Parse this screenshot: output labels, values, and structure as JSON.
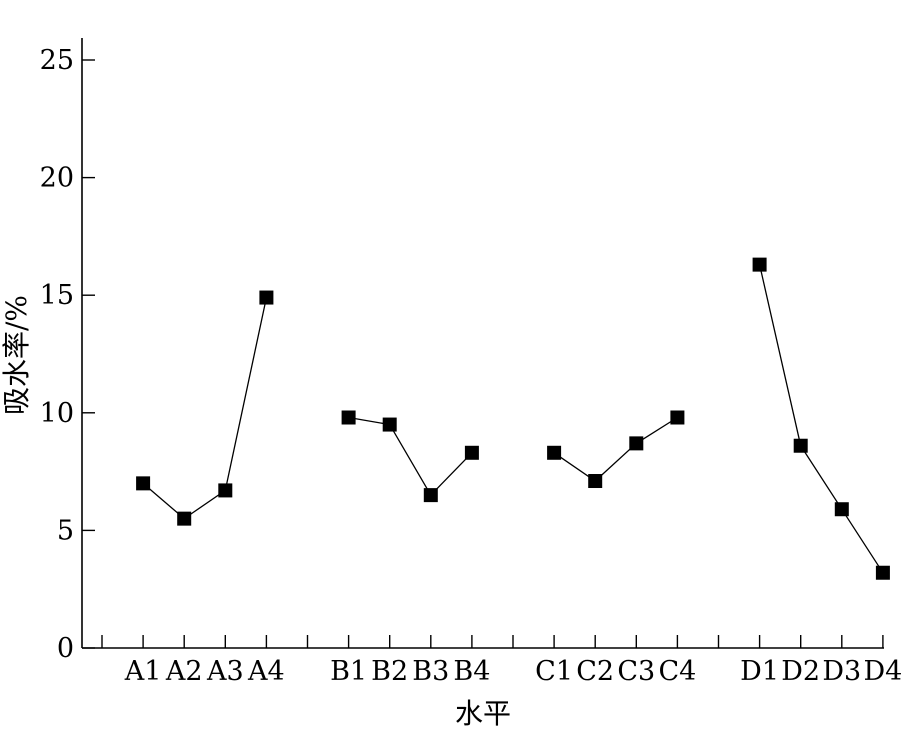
{
  "chart_data": {
    "type": "line",
    "xlabel": "水平",
    "ylabel": "吸水率/%",
    "ylim": [
      0,
      25
    ],
    "yticks": [
      "0",
      "5",
      "10",
      "15",
      "20",
      "25"
    ],
    "grid": false,
    "groups": [
      {
        "categories": [
          "A1",
          "A2",
          "A3",
          "A4"
        ],
        "values": [
          7.0,
          5.5,
          6.7,
          14.9
        ]
      },
      {
        "categories": [
          "B1",
          "B2",
          "B3",
          "B4"
        ],
        "values": [
          9.8,
          9.5,
          6.5,
          8.3
        ]
      },
      {
        "categories": [
          "C1",
          "C2",
          "C3",
          "C4"
        ],
        "values": [
          8.3,
          7.1,
          8.7,
          9.8
        ]
      },
      {
        "categories": [
          "D1",
          "D2",
          "D3",
          "D4"
        ],
        "values": [
          16.3,
          8.6,
          5.9,
          3.2
        ]
      }
    ],
    "marker": "square",
    "colors": {
      "line": "#000000",
      "marker": "#000000",
      "axis": "#000000"
    }
  }
}
